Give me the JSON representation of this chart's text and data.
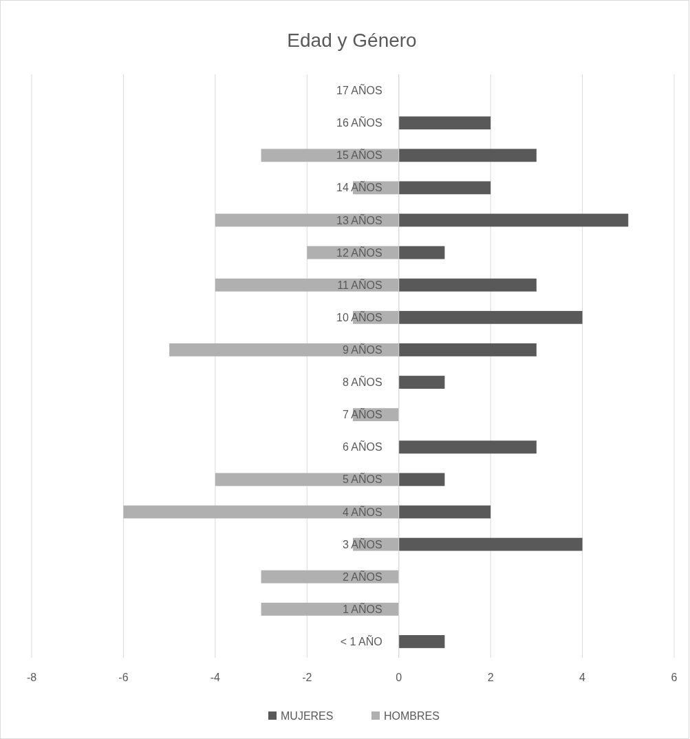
{
  "chart_data": {
    "type": "bar",
    "orientation": "horizontal",
    "stacked": true,
    "title": "Edad y Género",
    "categories": [
      "17 AÑOS",
      "16 AÑOS",
      "15 AÑOS",
      "14 AÑOS",
      "13 AÑOS",
      "12 AÑOS",
      "11 AÑOS",
      "10 AÑOS",
      "9 AÑOS",
      "8 AÑOS",
      "7 AÑOS",
      "6 AÑOS",
      "5 AÑOS",
      "4 AÑOS",
      "3 AÑOS",
      "2 AÑOS",
      "1 AÑOS",
      "< 1 AÑO"
    ],
    "series": [
      {
        "name": "MUJERES",
        "color": "#595959",
        "values": [
          0,
          2,
          3,
          2,
          5,
          1,
          3,
          4,
          3,
          1,
          0,
          3,
          1,
          2,
          4,
          0,
          0,
          1
        ]
      },
      {
        "name": "HOMBRES",
        "color": "#b0b0b0",
        "values": [
          0,
          0,
          -3,
          -1,
          -4,
          -2,
          -4,
          -1,
          -5,
          0,
          -1,
          0,
          -4,
          -6,
          -1,
          -3,
          -3,
          0
        ]
      }
    ],
    "xlim": [
      -8,
      6
    ],
    "xticks": [
      -8,
      -6,
      -4,
      -2,
      0,
      2,
      4,
      6
    ],
    "grid": "x",
    "legend": "bottom"
  }
}
